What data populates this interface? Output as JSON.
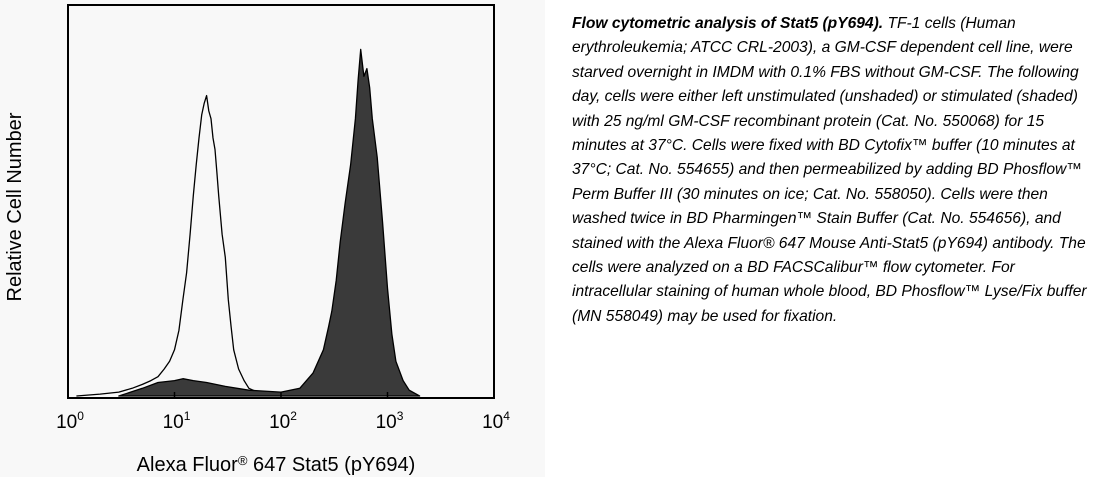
{
  "chart_data": {
    "type": "area",
    "xscale": "log",
    "xlim": [
      1,
      10000
    ],
    "xticks": [
      {
        "base": "10",
        "exp": "0"
      },
      {
        "base": "10",
        "exp": "1"
      },
      {
        "base": "10",
        "exp": "2"
      },
      {
        "base": "10",
        "exp": "3"
      },
      {
        "base": "10",
        "exp": "4"
      }
    ],
    "xlabel": {
      "prefix": "Alexa Fluor",
      "mark": "®",
      "suffix": " 647 Stat5 (pY694)"
    },
    "ylabel": "Relative Cell Number",
    "ylim": [
      0,
      1
    ],
    "grid": false,
    "series": [
      {
        "fill": "none",
        "stroke": "#000000",
        "x": [
          1.2,
          2,
          3,
          4,
          5,
          6,
          7,
          8,
          9,
          10,
          11,
          12,
          13,
          14,
          15,
          16,
          17,
          18,
          19,
          20,
          21,
          22,
          23,
          24,
          25,
          26,
          28,
          30,
          32,
          34,
          36,
          40,
          45,
          50,
          60,
          80,
          100
        ],
        "y": [
          0.0,
          0.005,
          0.01,
          0.02,
          0.03,
          0.04,
          0.05,
          0.07,
          0.09,
          0.12,
          0.17,
          0.25,
          0.32,
          0.42,
          0.52,
          0.6,
          0.67,
          0.73,
          0.76,
          0.78,
          0.74,
          0.72,
          0.67,
          0.64,
          0.58,
          0.52,
          0.42,
          0.36,
          0.25,
          0.18,
          0.12,
          0.07,
          0.04,
          0.02,
          0.01,
          0.003,
          0.0
        ]
      },
      {
        "fill": "#3a3a3a",
        "stroke": "#000000",
        "x": [
          3,
          5,
          7,
          10,
          12,
          15,
          20,
          30,
          50,
          100,
          150,
          200,
          250,
          280,
          300,
          330,
          360,
          400,
          450,
          500,
          530,
          560,
          600,
          640,
          680,
          720,
          800,
          900,
          1000,
          1100,
          1200,
          1400,
          1600,
          2000
        ],
        "y": [
          0.0,
          0.02,
          0.035,
          0.04,
          0.045,
          0.04,
          0.035,
          0.025,
          0.015,
          0.01,
          0.02,
          0.06,
          0.12,
          0.18,
          0.22,
          0.3,
          0.4,
          0.5,
          0.6,
          0.72,
          0.82,
          0.9,
          0.83,
          0.85,
          0.8,
          0.72,
          0.62,
          0.45,
          0.28,
          0.16,
          0.09,
          0.04,
          0.015,
          0.0
        ]
      }
    ]
  },
  "caption": {
    "title": "Flow cytometric analysis of Stat5 (pY694).",
    "body": " TF-1 cells (Human erythroleukemia; ATCC CRL-2003), a GM-CSF dependent cell line, were starved overnight in IMDM with 0.1% FBS without GM-CSF. The following day, cells were either left unstimulated (unshaded) or stimulated (shaded) with 25 ng/ml GM-CSF recombinant protein (Cat. No. 550068) for 15 minutes at 37°C. Cells were fixed with BD Cytofix™ buffer (10 minutes at 37°C; Cat. No. 554655) and then permeabilized by adding BD Phosflow™ Perm Buffer III (30 minutes on ice; Cat. No. 558050). Cells were then washed twice in BD Pharmingen™ Stain Buffer (Cat. No. 554656), and stained with the Alexa Fluor® 647 Mouse Anti-Stat5 (pY694) antibody. The cells were analyzed on a BD FACSCalibur™ flow cytometer.  For intracellular staining of human whole blood, BD Phosflow™ Lyse/Fix buffer (MN 558049) may be used for fixation."
  }
}
